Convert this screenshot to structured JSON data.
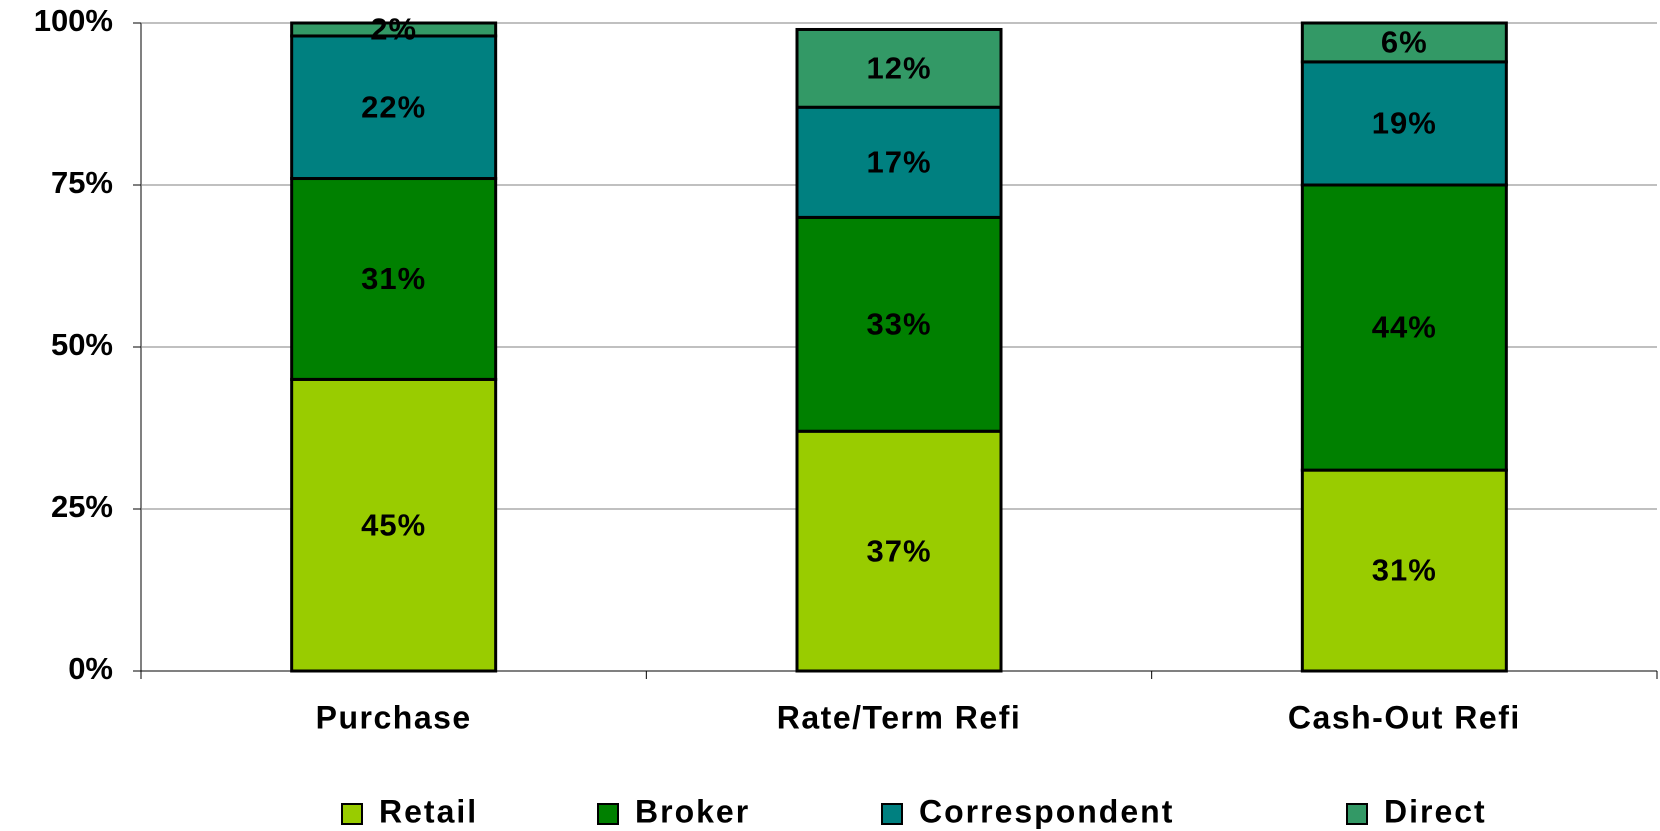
{
  "chart_data": {
    "type": "stacked_bar",
    "categories": [
      "Purchase",
      "Rate/Term Refi",
      "Cash-Out Refi"
    ],
    "series": [
      {
        "name": "Retail",
        "color": "#99cc00",
        "values": [
          45,
          37,
          31
        ],
        "value_labels": [
          "45%",
          "37%",
          "31%"
        ]
      },
      {
        "name": "Broker",
        "color": "#008000",
        "values": [
          31,
          33,
          44
        ],
        "value_labels": [
          "31%",
          "33%",
          "44%"
        ]
      },
      {
        "name": "Correspondent",
        "color": "#008080",
        "values": [
          22,
          17,
          19
        ],
        "value_labels": [
          "22%",
          "17%",
          "19%"
        ]
      },
      {
        "name": "Direct",
        "color": "#339966",
        "values": [
          2,
          12,
          6
        ],
        "value_labels": [
          "2%",
          "12%",
          "6%"
        ]
      }
    ],
    "ylim": [
      0,
      100
    ],
    "yticks": [
      {
        "value": 0,
        "label": "0%"
      },
      {
        "value": 25,
        "label": "25%"
      },
      {
        "value": 50,
        "label": "50%"
      },
      {
        "value": 75,
        "label": "75%"
      },
      {
        "value": 100,
        "label": "100%"
      }
    ],
    "grid": true,
    "legend": "bottom"
  }
}
